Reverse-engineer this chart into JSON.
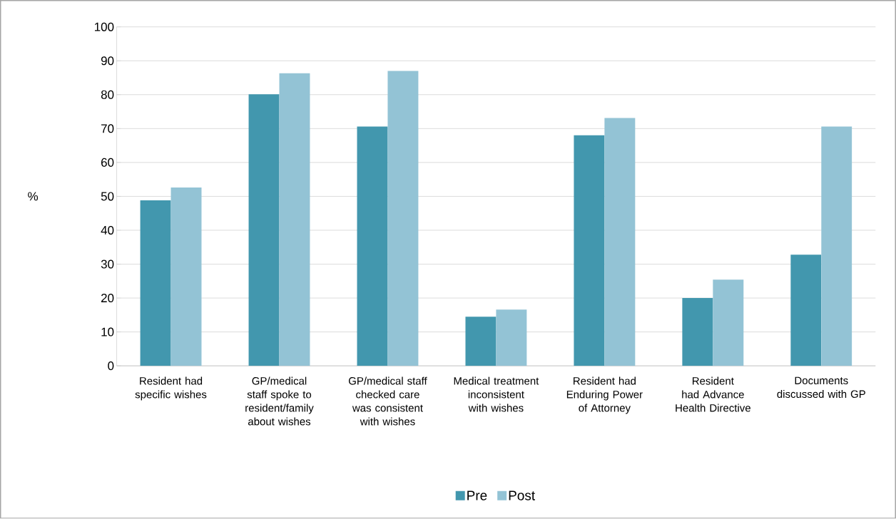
{
  "chart_data": {
    "type": "bar",
    "ylabel": "%",
    "categories": [
      "Resident had specific wishes",
      "GP/medical staff spoke to resident/family about wishes",
      "GP/medical staff checked care was consistent with wishes",
      "Medical treatment inconsistent with wishes",
      "Resident had Enduring Power of Attorney",
      "Resident had Advance Health Directive",
      "Documents discussed with GP"
    ],
    "series": [
      {
        "name": "Pre",
        "color": "#4297ae",
        "values": [
          48.8,
          80.1,
          70.6,
          14.5,
          68,
          20,
          32.8
        ]
      },
      {
        "name": "Post",
        "color": "#93c3d5",
        "values": [
          52.6,
          86.3,
          87,
          16.6,
          73.1,
          25.4,
          70.6
        ]
      }
    ],
    "ylim": [
      0,
      100
    ],
    "yticks": [
      0,
      10,
      20,
      30,
      40,
      50,
      60,
      70,
      80,
      90,
      100
    ],
    "grid": "y",
    "legend": "bottom"
  }
}
